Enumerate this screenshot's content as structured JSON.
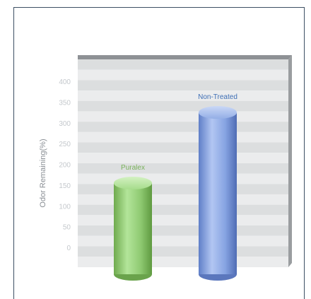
{
  "chart_data": {
    "type": "bar",
    "style": "3d-cylinder",
    "title": "",
    "xlabel": "",
    "ylabel": "Odor Remaining(%)",
    "ylim": [
      0,
      400
    ],
    "yticks": [
      0,
      50,
      100,
      150,
      200,
      250,
      300,
      350,
      400
    ],
    "categories": [
      "Puralex",
      "Non-Treated"
    ],
    "values": [
      160,
      330
    ],
    "colors": [
      "#8cc870",
      "#7f9fe0"
    ],
    "label_colors": [
      "#79b15a",
      "#3f6fb5"
    ],
    "grid": "horizontal bands",
    "legend": "none (labels above bars)"
  }
}
